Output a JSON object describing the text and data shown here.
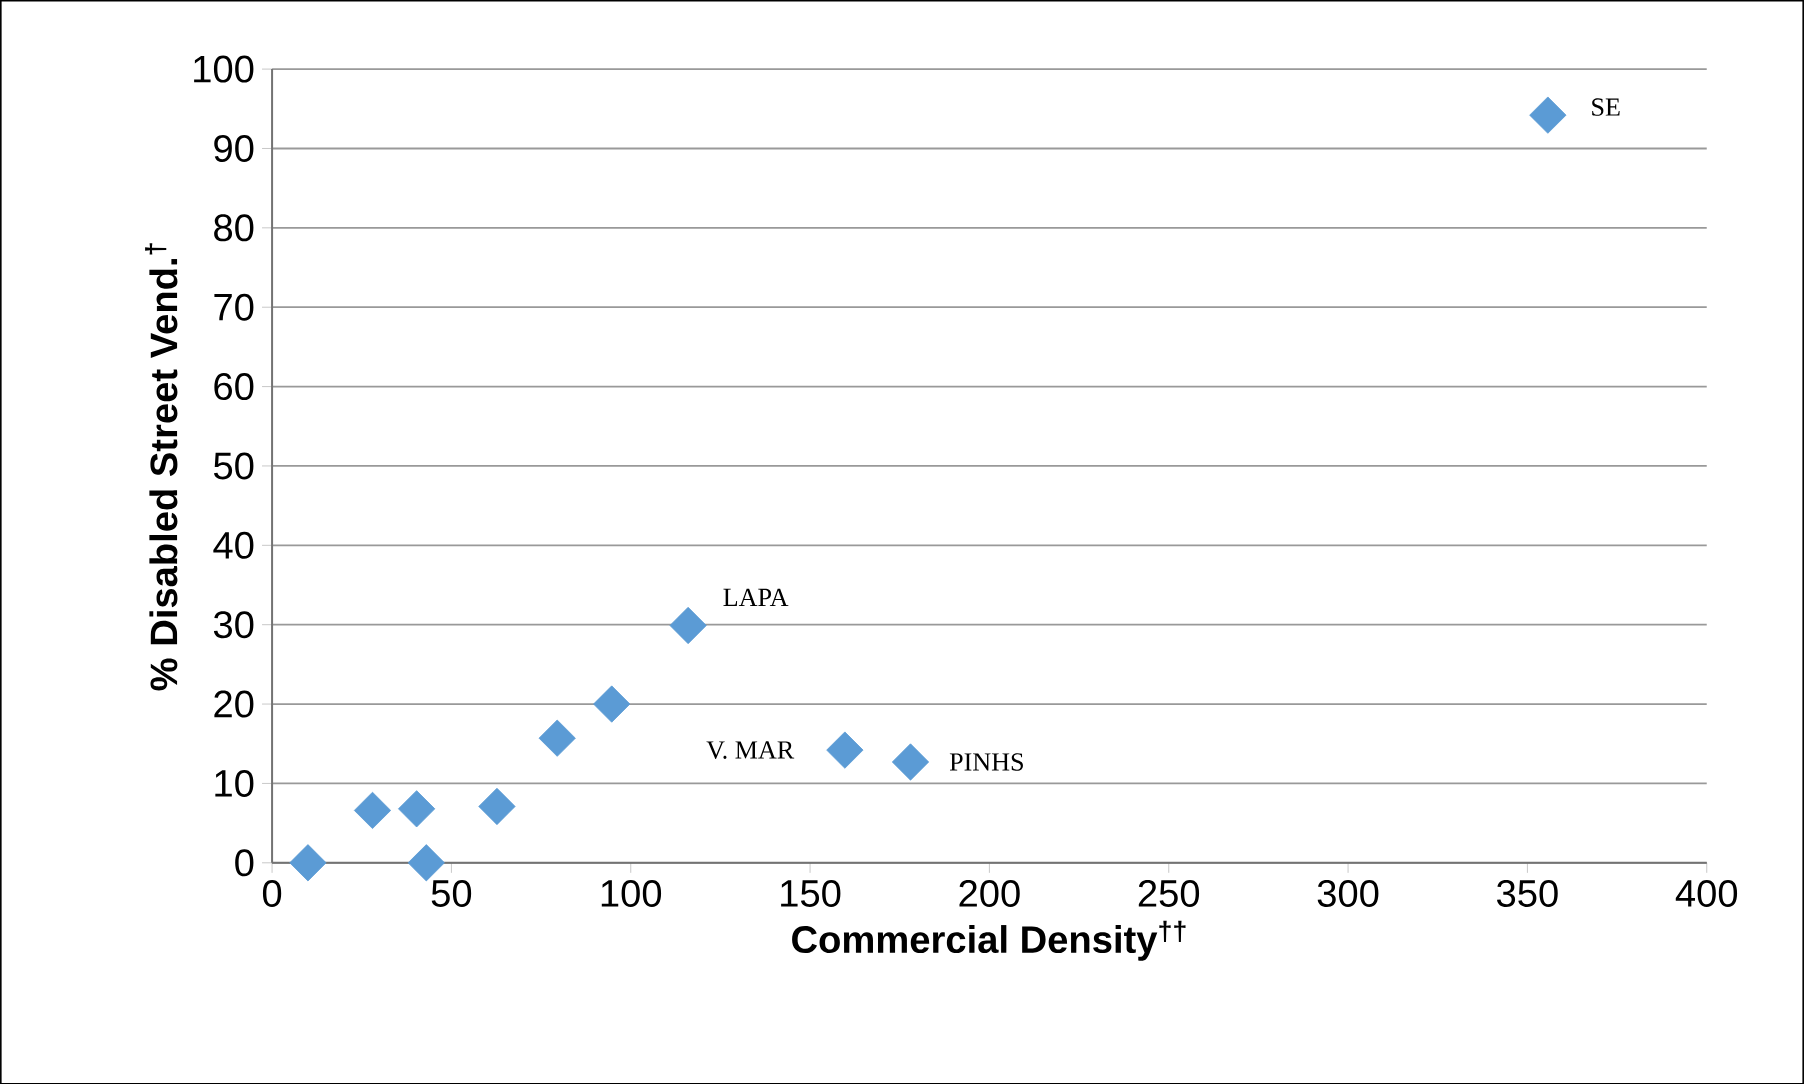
{
  "chart_data": {
    "type": "scatter",
    "xlabel": "Commercial Density$^{††}$",
    "ylabel": "% Disabled Street Vend.$^{†}$",
    "x": [
      10,
      28,
      40.3,
      43,
      62.7,
      79.5,
      94.7,
      116,
      159.7,
      178,
      355.7
    ],
    "values": [
      0,
      6.6,
      6.8,
      0,
      7.1,
      15.7,
      20,
      29.9,
      14.2,
      12.7,
      94.2
    ],
    "color": "#5b9bd5",
    "marker": "diamond",
    "xlim": [
      0,
      400
    ],
    "xticks": [
      0,
      50,
      100,
      150,
      200,
      250,
      300,
      350,
      400
    ],
    "ylim": [
      0,
      100
    ],
    "yticks": [
      0,
      10,
      20,
      30,
      40,
      50,
      60,
      70,
      80,
      90,
      100
    ],
    "grid": "y",
    "annotations": [
      {
        "text": "SE",
        "x": 355.7,
        "y": 94.2
      },
      {
        "text": "LAPA",
        "x": 116,
        "y": 29.9
      },
      {
        "text": "V. MAR",
        "x": 159.7,
        "y": 14.2
      },
      {
        "text": "PINHS",
        "x": 178,
        "y": 12.7
      }
    ]
  }
}
